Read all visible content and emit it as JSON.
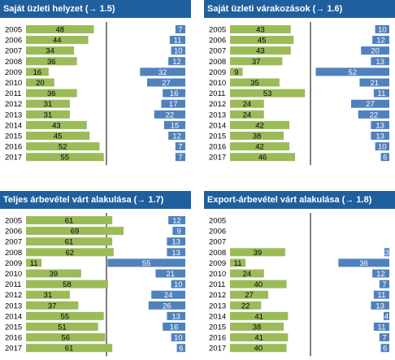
{
  "chart_data": [
    {
      "type": "bar",
      "title": "Saját üzleti helyzet",
      "ref": "(→ 1.5)",
      "categories": [
        "2005",
        "2006",
        "2007",
        "2008",
        "2009",
        "2010",
        "2011",
        "2012",
        "2013",
        "2014",
        "2015",
        "2016",
        "2017"
      ],
      "series": [
        {
          "values": [
            48,
            44,
            34,
            36,
            16,
            20,
            36,
            31,
            31,
            43,
            45,
            52,
            55
          ],
          "color": "#9bbb59"
        },
        {
          "values": [
            7,
            11,
            10,
            12,
            32,
            27,
            16,
            17,
            22,
            15,
            12,
            7,
            7
          ],
          "color": "#4f81bd"
        }
      ]
    },
    {
      "type": "bar",
      "title": "Saját üzleti várakozások",
      "ref": "(→ 1.6)",
      "categories": [
        "2005",
        "2006",
        "2007",
        "2008",
        "2009",
        "2010",
        "2011",
        "2012",
        "2013",
        "2014",
        "2015",
        "2016",
        "2017"
      ],
      "series": [
        {
          "values": [
            43,
            45,
            43,
            37,
            9,
            35,
            53,
            24,
            24,
            42,
            38,
            42,
            46
          ],
          "color": "#9bbb59"
        },
        {
          "values": [
            10,
            12,
            20,
            13,
            52,
            21,
            11,
            27,
            22,
            13,
            13,
            10,
            6
          ],
          "color": "#4f81bd"
        }
      ]
    },
    {
      "type": "bar",
      "title": "Teljes árbevétel várt alakulása",
      "ref": "(→ 1.7)",
      "categories": [
        "2005",
        "2006",
        "2007",
        "2008",
        "2009",
        "2010",
        "2011",
        "2012",
        "2013",
        "2014",
        "2015",
        "2016",
        "2017"
      ],
      "series": [
        {
          "values": [
            61,
            69,
            61,
            62,
            11,
            39,
            58,
            31,
            37,
            55,
            51,
            56,
            61
          ],
          "color": "#9bbb59"
        },
        {
          "values": [
            12,
            9,
            13,
            13,
            55,
            21,
            10,
            24,
            26,
            13,
            16,
            10,
            6
          ],
          "color": "#4f81bd"
        }
      ]
    },
    {
      "type": "bar",
      "title": "Export-árbevétel várt alakulása",
      "ref": "(→ 1.8)",
      "categories": [
        "2005",
        "2006",
        "2007",
        "2008",
        "2009",
        "2010",
        "2011",
        "2012",
        "2013",
        "2014",
        "2015",
        "2016",
        "2017"
      ],
      "series": [
        {
          "values": [
            null,
            null,
            null,
            39,
            11,
            24,
            40,
            27,
            22,
            41,
            38,
            41,
            40
          ],
          "color": "#9bbb59"
        },
        {
          "values": [
            null,
            null,
            null,
            3,
            36,
            12,
            7,
            11,
            13,
            4,
            11,
            7,
            6
          ],
          "color": "#4f81bd"
        }
      ]
    }
  ]
}
